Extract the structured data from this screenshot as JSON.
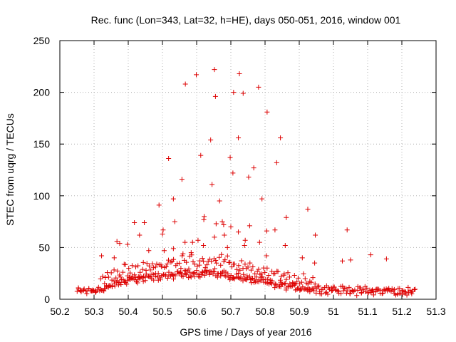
{
  "chart_data": {
    "type": "scatter",
    "title": "Rec. func (Lon=343, Lat=32, h=HE), days 050-051, 2016, window 001",
    "xlabel": "GPS time / Days of year 2016",
    "ylabel": "STEC from uqrg / TECUs",
    "xlim": [
      50.2,
      51.3
    ],
    "ylim": [
      0,
      250
    ],
    "xticks": [
      "50.2",
      "50.3",
      "50.4",
      "50.5",
      "50.6",
      "50.7",
      "50.8",
      "50.9",
      "51",
      "51.1",
      "51.2",
      "51.3"
    ],
    "yticks": [
      "0",
      "50",
      "100",
      "150",
      "200",
      "250"
    ],
    "grid": true,
    "marker": "+",
    "color": "#dd0000",
    "series": [
      {
        "name": "STEC",
        "x": [
          50.567,
          50.599,
          50.652,
          50.725,
          50.781,
          50.655,
          50.736,
          50.708,
          50.806,
          50.722,
          50.845,
          50.641,
          50.612,
          50.518,
          50.698,
          50.834,
          50.767,
          50.557,
          50.706,
          50.752,
          50.645,
          50.791,
          50.532,
          50.622,
          50.667,
          50.925,
          50.49,
          50.621,
          50.862,
          50.536,
          50.675,
          50.418,
          50.447,
          50.657,
          50.755,
          50.7,
          50.679,
          51.04,
          50.502,
          50.805,
          50.829,
          50.722,
          50.681,
          50.433,
          50.947,
          50.367,
          50.604,
          50.652,
          50.742,
          50.5,
          50.566,
          50.588,
          50.784,
          50.859,
          50.375,
          50.398,
          50.505,
          50.62,
          50.69,
          50.532,
          50.46,
          50.584,
          51.109,
          50.74,
          50.322,
          50.359,
          50.56,
          50.909,
          50.804,
          51.155,
          51.05,
          51.026,
          50.945
        ],
        "y": [
          208,
          217,
          222,
          218,
          205,
          196,
          199,
          200,
          181,
          156,
          156,
          154,
          139,
          136,
          137,
          132,
          127,
          116,
          122,
          118,
          111,
          97,
          97,
          80,
          95,
          87,
          91,
          77,
          79,
          75,
          75,
          74,
          74,
          73,
          71,
          70,
          72,
          67,
          67,
          66,
          67,
          65,
          62,
          62,
          62,
          56,
          57,
          60,
          57,
          63,
          55,
          55,
          55,
          52,
          54,
          53,
          47,
          52,
          50,
          49,
          47,
          45,
          43,
          52,
          42,
          40,
          44,
          40,
          42,
          39,
          38,
          37,
          35
        ],
        "bands": [
          {
            "xrange": [
              50.25,
              51.24
            ],
            "center": [
              [
                50.25,
                8
              ],
              [
                50.33,
                10
              ],
              [
                50.4,
                19
              ],
              [
                50.48,
                22
              ],
              [
                50.55,
                24
              ],
              [
                50.62,
                26
              ],
              [
                50.68,
                24
              ],
              [
                50.75,
                20
              ],
              [
                50.82,
                15
              ],
              [
                50.9,
                11
              ],
              [
                51.0,
                9
              ],
              [
                51.1,
                8
              ],
              [
                51.24,
                8
              ]
            ],
            "spread": 5,
            "points": 360
          },
          {
            "xrange": [
              50.32,
              50.95
            ],
            "center": [
              [
                50.32,
                18
              ],
              [
                50.4,
                28
              ],
              [
                50.48,
                33
              ],
              [
                50.56,
                36
              ],
              [
                50.63,
                38
              ],
              [
                50.7,
                35
              ],
              [
                50.78,
                27
              ],
              [
                50.86,
                20
              ],
              [
                50.95,
                14
              ]
            ],
            "spread": 9,
            "points": 130
          }
        ]
      }
    ]
  }
}
